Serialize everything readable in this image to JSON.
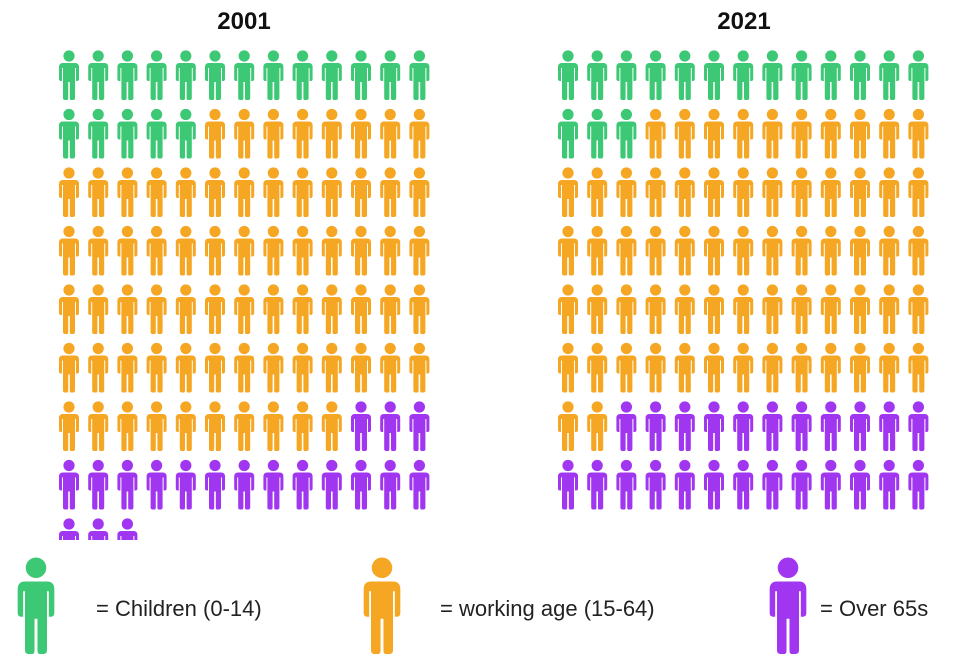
{
  "chart_data": {
    "type": "pictogram",
    "icon": "person-icon",
    "colors": {
      "children": "#3cc874",
      "working": "#f5a623",
      "over65": "#a036f0"
    },
    "panels": [
      {
        "title": "2001",
        "columns": 13,
        "counts": {
          "children": 18,
          "working": 70,
          "over65": 19
        }
      },
      {
        "title": "2021",
        "columns": 13,
        "counts": {
          "children": 16,
          "working": 64,
          "over65": 24
        }
      }
    ],
    "legend": [
      {
        "key": "children",
        "label": "= Children (0-14)"
      },
      {
        "key": "working",
        "label": "= working age (15-64)"
      },
      {
        "key": "over65",
        "label": "= Over 65s"
      }
    ]
  }
}
